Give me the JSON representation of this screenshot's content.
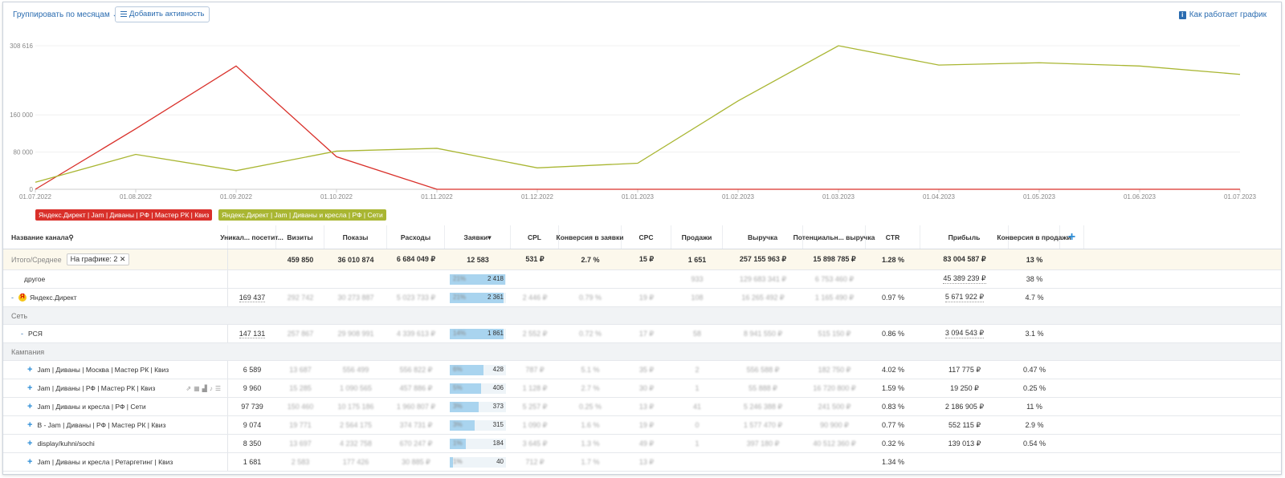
{
  "toolbar": {
    "group_label": "Группировать по месяцам",
    "add_activity": "Добавить активность",
    "how_label": "Как работает график"
  },
  "chart_data": {
    "type": "line",
    "x": [
      "01.07.2022",
      "01.08.2022",
      "01.09.2022",
      "01.10.2022",
      "01.11.2022",
      "01.12.2022",
      "01.01.2023",
      "01.02.2023",
      "01.03.2023",
      "01.04.2023",
      "01.05.2023",
      "01.06.2023",
      "01.07.2023"
    ],
    "yticks": [
      "308 616",
      "160 000",
      "80 000",
      "0"
    ],
    "ylim": [
      0,
      308616
    ],
    "series": [
      {
        "name": "Яндекс.Директ | Jam | Диваны | РФ | Мастер РК | Квиз",
        "color": "#d9302a",
        "values": [
          0,
          130000,
          265000,
          70000,
          0,
          0,
          0,
          0,
          0,
          0,
          0,
          0,
          0
        ]
      },
      {
        "name": "Яндекс.Директ | Jam | Диваны и кресла | РФ | Сети",
        "color": "#a9b632",
        "values": [
          15000,
          75000,
          40000,
          82000,
          88000,
          46000,
          56000,
          190000,
          308616,
          267000,
          272000,
          265000,
          247000
        ]
      }
    ]
  },
  "table": {
    "headers": [
      "Название канала",
      "Уникал... посетит...",
      "Визиты",
      "Показы",
      "Расходы",
      "Заявки",
      "CPL",
      "Конверсия в заявки",
      "CPC",
      "Продажи",
      "Выручка",
      "Потенциальн... выручка",
      "CTR",
      "Прибыль",
      "Конверсия в продажи"
    ],
    "totals": {
      "label": "Итого/Среднее",
      "on_chart": "На графике: 2",
      "cells": [
        "",
        "459 850",
        "36 010 874",
        "6 684 049 ₽",
        "12 583",
        "531 ₽",
        "2.7 %",
        "15 ₽",
        "1 651",
        "257 155 963 ₽",
        "15 898 785 ₽",
        "1.28 %",
        "83 004 587 ₽",
        "13 %"
      ]
    },
    "rows": [
      {
        "kind": "item",
        "name": "другое",
        "cells": [
          "",
          "",
          "",
          "",
          "",
          "",
          "",
          "",
          "933",
          "129 683 341 ₽",
          "6 753 460 ₽",
          "",
          "45 389 239 ₽",
          "38 %"
        ],
        "bar": {
          "pct": "21%",
          "val": "2 418",
          "fill": 0.98
        }
      },
      {
        "kind": "item",
        "name": "Яндекс.Директ",
        "cells": [
          "169 437",
          "292 742",
          "30 273 887",
          "5 023 733 ₽",
          "",
          "2 446 ₽",
          "0.79 %",
          "19 ₽",
          "108",
          "16 265 492 ₽",
          "1 165 490 ₽",
          "0.97 %",
          "5 671 922 ₽",
          "4.7 %"
        ],
        "bar": {
          "pct": "21%",
          "val": "2 361",
          "fill": 0.96
        }
      },
      {
        "kind": "section",
        "name": "Сеть"
      },
      {
        "kind": "item",
        "name": "РСЯ",
        "cells": [
          "147 131",
          "257 867",
          "29 908 991",
          "4 339 613 ₽",
          "",
          "2 552 ₽",
          "0.72 %",
          "17 ₽",
          "58",
          "8 941 550 ₽",
          "515 150 ₽",
          "0.86 %",
          "3 094 543 ₽",
          "3.1 %"
        ],
        "bar": {
          "pct": "14%",
          "val": "1 861",
          "fill": 0.96
        }
      },
      {
        "kind": "section",
        "name": "Кампания"
      },
      {
        "kind": "item",
        "name": "Jam | Диваны | Москва | Мастер РК | Квиз",
        "cells": [
          "6 589",
          "13 687",
          "556 499",
          "556 822 ₽",
          "",
          "787 ₽",
          "5.1 %",
          "35 ₽",
          "2",
          "556 588 ₽",
          "182 750 ₽",
          "4.02 %",
          "117 775 ₽",
          "0.47 %"
        ],
        "bar": {
          "pct": "6%",
          "val": "428",
          "fill": 0.6
        }
      },
      {
        "kind": "item",
        "name": "Jam | Диваны | РФ | Мастер РК | Квиз",
        "cells": [
          "9 960",
          "15 285",
          "1 090 565",
          "457 886 ₽",
          "",
          "1 128 ₽",
          "2.7 %",
          "30 ₽",
          "1",
          "55 888 ₽",
          "16 720 800 ₽",
          "1.59 %",
          "19 250 ₽",
          "0.25 %"
        ],
        "bar": {
          "pct": "5%",
          "val": "406",
          "fill": 0.56
        }
      },
      {
        "kind": "item",
        "name": "Jam | Диваны и кресла | РФ | Сети",
        "cells": [
          "97 739",
          "150 460",
          "10 175 186",
          "1 960 807 ₽",
          "",
          "5 257 ₽",
          "0.25 %",
          "13 ₽",
          "41",
          "5 246 388 ₽",
          "241 500 ₽",
          "0.83 %",
          "2 186 905 ₽",
          "11 %"
        ],
        "bar": {
          "pct": "3%",
          "val": "373",
          "fill": 0.52
        }
      },
      {
        "kind": "item",
        "name": "B - Jam | Диваны | РФ | Мастер РК | Квиз",
        "cells": [
          "9 074",
          "19 771",
          "2 564 175",
          "374 731 ₽",
          "",
          "1 090 ₽",
          "1.6 %",
          "19 ₽",
          "0",
          "1 577 470 ₽",
          "90 900 ₽",
          "0.77 %",
          "552 115 ₽",
          "2.9 %"
        ],
        "bar": {
          "pct": "3%",
          "val": "315",
          "fill": 0.44
        }
      },
      {
        "kind": "item",
        "name": "display/kuhni/sochi",
        "cells": [
          "8 350",
          "13 697",
          "4 232 758",
          "670 247 ₽",
          "",
          "3 645 ₽",
          "1.3 %",
          "49 ₽",
          "1",
          "397 180 ₽",
          "40 512 360 ₽",
          "0.32 %",
          "139 013 ₽",
          "0.54 %"
        ],
        "bar": {
          "pct": "1%",
          "val": "184",
          "fill": 0.28
        }
      },
      {
        "kind": "item",
        "name": "Jam | Диваны и кресла | Ретаргетинг | Квиз",
        "cells": [
          "1 681",
          "2 583",
          "177 426",
          "30 885 ₽",
          "",
          "712 ₽",
          "1.7 %",
          "13 ₽",
          "",
          "",
          "",
          "1.34 %",
          "",
          ""
        ],
        "bar": {
          "pct": "1%",
          "val": "40",
          "fill": 0.06
        }
      }
    ]
  }
}
